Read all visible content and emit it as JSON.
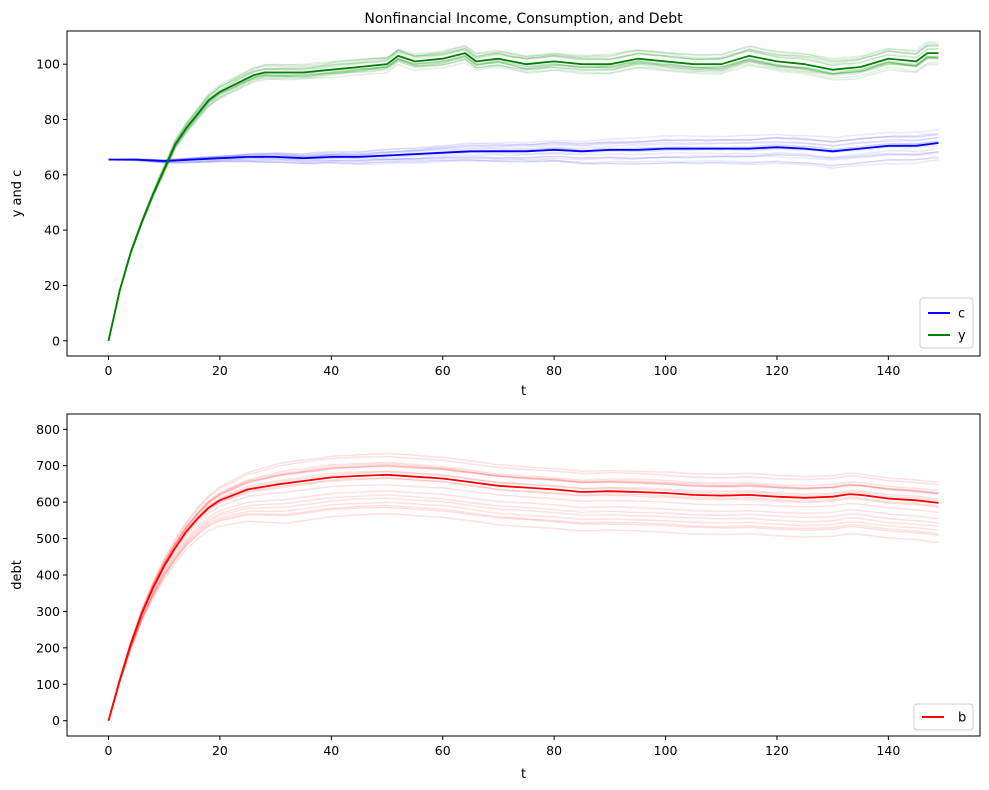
{
  "chart_data": [
    {
      "type": "line",
      "title": "Nonfinancial Income, Consumption, and Debt",
      "xlabel": "t",
      "ylabel": "y and c",
      "xlim": [
        -7.45,
        156.45
      ],
      "ylim": [
        -5.5,
        112
      ],
      "xticks": [
        0,
        20,
        40,
        60,
        80,
        100,
        120,
        140
      ],
      "yticks": [
        0,
        20,
        40,
        60,
        80,
        100
      ],
      "legend_position": "lower-right",
      "series": [
        {
          "name": "c",
          "color": "#0000ff",
          "x": [
            0,
            5,
            10,
            15,
            20,
            25,
            30,
            35,
            40,
            45,
            50,
            55,
            60,
            65,
            70,
            75,
            80,
            85,
            90,
            95,
            100,
            105,
            110,
            115,
            120,
            125,
            130,
            135,
            140,
            145,
            149
          ],
          "values": [
            65.5,
            65.5,
            65,
            65.5,
            66,
            66.5,
            66.5,
            66,
            66.5,
            66.5,
            67,
            67.5,
            68,
            68.5,
            68.5,
            68.5,
            69,
            68.5,
            69,
            69,
            69.5,
            69.5,
            69.5,
            69.5,
            70,
            69.5,
            68.5,
            69.5,
            70.5,
            70.5,
            71.5
          ]
        },
        {
          "name": "y",
          "color": "#008000",
          "x": [
            0,
            2,
            4,
            6,
            8,
            10,
            12,
            14,
            16,
            18,
            20,
            22,
            24,
            26,
            28,
            30,
            35,
            40,
            45,
            50,
            52,
            55,
            60,
            64,
            66,
            70,
            75,
            80,
            85,
            90,
            95,
            100,
            105,
            110,
            115,
            120,
            125,
            130,
            135,
            140,
            145,
            147,
            149
          ],
          "values": [
            0,
            18,
            32,
            43,
            53,
            62,
            71,
            77,
            82,
            87,
            90,
            92,
            94,
            96,
            97,
            97,
            97,
            98,
            99,
            100,
            103,
            101,
            102,
            104,
            101,
            102,
            100,
            101,
            100,
            100,
            102,
            101,
            100,
            100,
            103,
            101,
            100,
            98,
            99,
            102,
            101,
            104,
            104
          ]
        }
      ]
    },
    {
      "type": "line",
      "xlabel": "t",
      "ylabel": "debt",
      "xlim": [
        -7.45,
        156.45
      ],
      "ylim": [
        -42,
        842
      ],
      "xticks": [
        0,
        20,
        40,
        60,
        80,
        100,
        120,
        140
      ],
      "yticks": [
        0,
        100,
        200,
        300,
        400,
        500,
        600,
        700,
        800
      ],
      "legend_position": "lower-right",
      "series": [
        {
          "name": "b",
          "color": "#ff0000",
          "x": [
            0,
            2,
            4,
            6,
            8,
            10,
            12,
            14,
            16,
            18,
            20,
            25,
            30,
            35,
            40,
            45,
            50,
            55,
            60,
            65,
            70,
            75,
            80,
            85,
            90,
            95,
            100,
            105,
            110,
            115,
            120,
            125,
            130,
            133,
            135,
            140,
            145,
            149
          ],
          "values": [
            0,
            110,
            210,
            295,
            365,
            425,
            475,
            520,
            555,
            585,
            605,
            635,
            648,
            658,
            668,
            672,
            675,
            670,
            665,
            655,
            645,
            640,
            635,
            628,
            630,
            628,
            625,
            620,
            618,
            620,
            615,
            612,
            615,
            622,
            620,
            610,
            605,
            598
          ]
        }
      ]
    }
  ]
}
